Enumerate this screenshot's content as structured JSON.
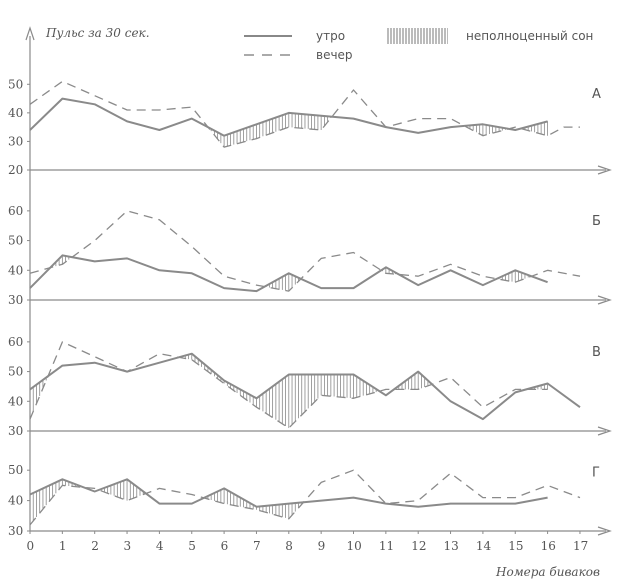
{
  "chart_data": {
    "type": "line",
    "ylabel": "Пульс за 30 сек.",
    "xlabel": "Номера биваков",
    "legend": {
      "morning": "утро",
      "evening": "вечер",
      "hatch": "неполноценный сон"
    },
    "x_ticks": [
      "0",
      "1",
      "2",
      "3",
      "4",
      "5",
      "6",
      "7",
      "8",
      "9",
      "10",
      "11",
      "12",
      "13",
      "14",
      "15",
      "16",
      "17"
    ],
    "colors": {
      "morning": "#8a8a8a",
      "evening": "#8a8a8a",
      "axis": "#8a8a8a"
    },
    "panels": [
      {
        "label": "А",
        "ylim": [
          20,
          55
        ],
        "yticks": [
          "20",
          "30",
          "40",
          "50"
        ],
        "series": [
          {
            "name": "утро",
            "x": [
              0,
              1,
              2,
              3,
              4,
              5,
              6,
              7,
              8,
              9,
              10,
              11,
              12,
              13,
              14,
              15,
              16
            ],
            "y": [
              34,
              45,
              43,
              37,
              34,
              38,
              32,
              36,
              40,
              39,
              38,
              35,
              33,
              35,
              36,
              34,
              37
            ]
          },
          {
            "name": "вечер",
            "x": [
              0,
              1,
              2,
              3,
              4,
              5,
              6,
              7,
              8,
              9,
              10,
              11,
              12,
              13,
              14,
              15,
              16,
              16.5,
              17
            ],
            "y": [
              43,
              51,
              46,
              41,
              41,
              42,
              28,
              31,
              35,
              34,
              48,
              35,
              38,
              38,
              32,
              35,
              32,
              35,
              35
            ]
          }
        ]
      },
      {
        "label": "Б",
        "ylim": [
          30,
          65
        ],
        "yticks": [
          "30",
          "40",
          "50",
          "60"
        ],
        "series": [
          {
            "name": "утро",
            "x": [
              0,
              1,
              2,
              3,
              4,
              5,
              6,
              7,
              8,
              9,
              10,
              11,
              12,
              13,
              14,
              15,
              16
            ],
            "y": [
              34,
              45,
              43,
              44,
              40,
              39,
              34,
              33,
              39,
              34,
              34,
              41,
              35,
              40,
              35,
              40,
              36
            ]
          },
          {
            "name": "вечер",
            "x": [
              0,
              1,
              2,
              3,
              4,
              5,
              6,
              7,
              8,
              9,
              10,
              11,
              12,
              13,
              14,
              15,
              16,
              17
            ],
            "y": [
              39,
              42,
              50,
              60,
              57,
              48,
              38,
              35,
              33,
              44,
              46,
              39,
              38,
              42,
              38,
              36,
              40,
              38
            ]
          }
        ]
      },
      {
        "label": "В",
        "ylim": [
          30,
          65
        ],
        "yticks": [
          "30",
          "40",
          "50",
          "60"
        ],
        "series": [
          {
            "name": "утро",
            "x": [
              0,
              1,
              2,
              3,
              4,
              5,
              6,
              7,
              8,
              9,
              10,
              11,
              12,
              13,
              14,
              15,
              16,
              17
            ],
            "y": [
              44,
              52,
              53,
              50,
              53,
              56,
              47,
              41,
              49,
              49,
              49,
              42,
              50,
              40,
              34,
              43,
              46,
              38
            ]
          },
          {
            "name": "вечер",
            "x": [
              0,
              1,
              2,
              3,
              4,
              5,
              6,
              7,
              8,
              9,
              10,
              11,
              12,
              13,
              14,
              15,
              16
            ],
            "y": [
              34,
              60,
              55,
              50,
              56,
              54,
              46,
              38,
              31,
              42,
              41,
              44,
              44,
              48,
              38,
              44,
              44
            ]
          }
        ]
      },
      {
        "label": "Г",
        "ylim": [
          30,
          55
        ],
        "yticks": [
          "30",
          "40",
          "50"
        ],
        "series": [
          {
            "name": "утро",
            "x": [
              0,
              1,
              2,
              3,
              4,
              5,
              6,
              7,
              8,
              9,
              10,
              11,
              12,
              13,
              14,
              15,
              16
            ],
            "y": [
              42,
              47,
              43,
              47,
              39,
              39,
              44,
              38,
              39,
              40,
              41,
              39,
              38,
              39,
              39,
              39,
              41
            ]
          },
          {
            "name": "вечер",
            "x": [
              0,
              1,
              2,
              3,
              4,
              5,
              6,
              7,
              8,
              9,
              10,
              11,
              12,
              13,
              14,
              15,
              16,
              17
            ],
            "y": [
              32,
              45,
              44,
              40,
              44,
              42,
              39,
              37,
              34,
              46,
              50,
              39,
              40,
              49,
              41,
              41,
              45,
              41
            ]
          }
        ]
      }
    ]
  }
}
